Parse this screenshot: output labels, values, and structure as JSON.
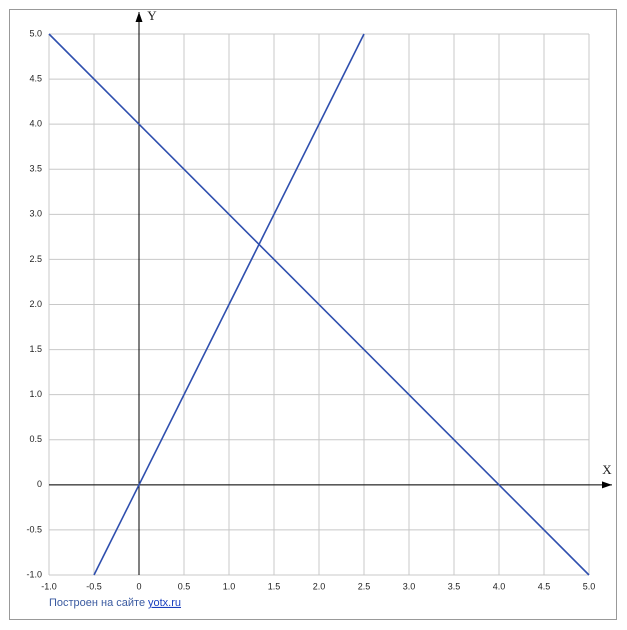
{
  "chart_data": {
    "type": "line",
    "xlabel": "X",
    "ylabel": "Y",
    "xlim": [
      -1,
      5
    ],
    "ylim": [
      -1,
      5
    ],
    "xticks": [
      {
        "value": -1,
        "label": "-1.0"
      },
      -0.5,
      0,
      0.5,
      {
        "value": 1,
        "label": "1.0"
      },
      1.5,
      {
        "value": 2,
        "label": "2.0"
      },
      2.5,
      {
        "value": 3,
        "label": "3.0"
      },
      3.5,
      {
        "value": 4,
        "label": "4.0"
      },
      4.5,
      {
        "value": 5,
        "label": "5.0"
      }
    ],
    "yticks": [
      {
        "value": -1,
        "label": "-1.0"
      },
      -0.5,
      0,
      0.5,
      {
        "value": 1,
        "label": "1.0"
      },
      1.5,
      {
        "value": 2,
        "label": "2.0"
      },
      2.5,
      {
        "value": 3,
        "label": "3.0"
      },
      3.5,
      {
        "value": 4,
        "label": "4.0"
      },
      4.5,
      {
        "value": 5,
        "label": "5.0"
      }
    ],
    "grid": true,
    "series": [
      {
        "color": "#2f4fae",
        "x": [
          -1,
          5
        ],
        "values": [
          5,
          -1
        ]
      },
      {
        "color": "#2f4fae",
        "x": [
          -0.5,
          2.5
        ],
        "values": [
          -1,
          5
        ]
      }
    ]
  },
  "footer": {
    "text": "Построен на сайте",
    "link": "yotx.ru"
  }
}
